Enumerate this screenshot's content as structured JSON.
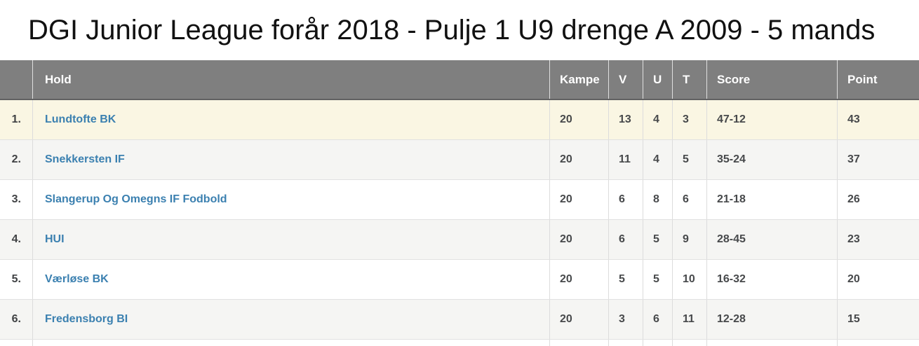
{
  "page": {
    "title": "DGI Junior League forår 2018 - Pulje 1 U9 drenge A 2009 - 5 mands"
  },
  "table": {
    "columns": {
      "pos": "",
      "hold": "Hold",
      "kampe": "Kampe",
      "v": "V",
      "u": "U",
      "t": "T",
      "score": "Score",
      "point": "Point"
    },
    "rows": [
      {
        "pos": "1.",
        "hold": "Lundtofte BK",
        "kampe": "20",
        "v": "13",
        "u": "4",
        "t": "3",
        "score": "47-12",
        "point": "43",
        "highlight": true
      },
      {
        "pos": "2.",
        "hold": "Snekkersten IF",
        "kampe": "20",
        "v": "11",
        "u": "4",
        "t": "5",
        "score": "35-24",
        "point": "37"
      },
      {
        "pos": "3.",
        "hold": "Slangerup Og Omegns IF Fodbold",
        "kampe": "20",
        "v": "6",
        "u": "8",
        "t": "6",
        "score": "21-18",
        "point": "26"
      },
      {
        "pos": "4.",
        "hold": "HUI",
        "kampe": "20",
        "v": "6",
        "u": "5",
        "t": "9",
        "score": "28-45",
        "point": "23"
      },
      {
        "pos": "5.",
        "hold": "Værløse BK",
        "kampe": "20",
        "v": "5",
        "u": "5",
        "t": "10",
        "score": "16-32",
        "point": "20"
      },
      {
        "pos": "6.",
        "hold": "Fredensborg BI",
        "kampe": "20",
        "v": "3",
        "u": "6",
        "t": "11",
        "score": "12-28",
        "point": "15"
      }
    ],
    "colors": {
      "header_bg": "#7f7f7f",
      "header_text": "#ffffff",
      "highlight_row_bg": "#faf6e3",
      "alt_row_bg": "#f5f5f3",
      "row_border": "#e1e1e1",
      "team_link": "#3b80b0",
      "number_text": "#47494b"
    }
  }
}
